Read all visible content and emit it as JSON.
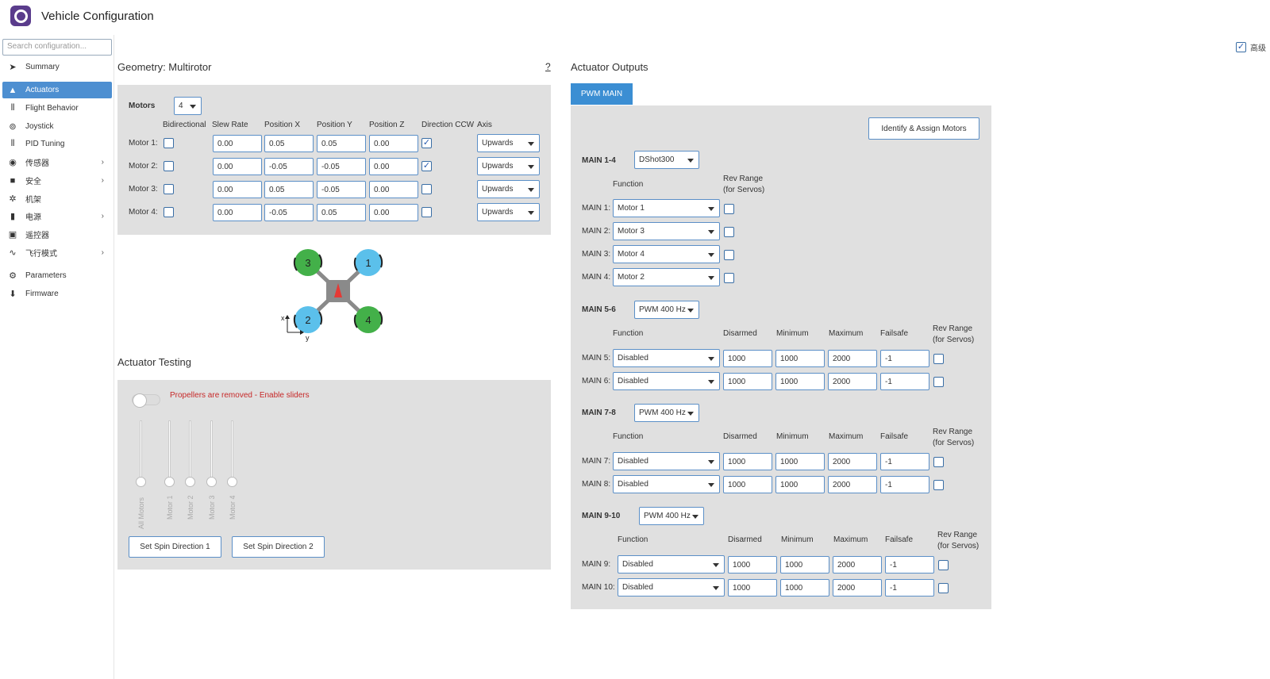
{
  "app": {
    "title": "Vehicle Configuration",
    "advanced_label": "高级",
    "advanced_checked": true
  },
  "sidebar": {
    "search_placeholder": "Search configuration...",
    "items": [
      {
        "label": "Summary",
        "icon": "paper-plane-icon"
      },
      {
        "label": "Actuators",
        "icon": "actuator-icon",
        "selected": true
      },
      {
        "label": "Flight Behavior",
        "icon": "sliders-icon"
      },
      {
        "label": "Joystick",
        "icon": "gamepad-icon"
      },
      {
        "label": "PID Tuning",
        "icon": "sliders-icon"
      },
      {
        "label": "传感器",
        "icon": "signal-icon",
        "chevron": true
      },
      {
        "label": "安全",
        "icon": "medkit-icon",
        "chevron": true
      },
      {
        "label": "机架",
        "icon": "frame-icon"
      },
      {
        "label": "电源",
        "icon": "battery-icon",
        "chevron": true
      },
      {
        "label": "遥控器",
        "icon": "remote-icon"
      },
      {
        "label": "飞行模式",
        "icon": "waveform-icon",
        "chevron": true
      },
      {
        "label": "Parameters",
        "icon": "gears-icon"
      },
      {
        "label": "Firmware",
        "icon": "download-icon"
      }
    ]
  },
  "geometry": {
    "title": "Geometry: Multirotor",
    "help": "?",
    "motors_label": "Motors",
    "motors_count": "4",
    "headers": {
      "bidir": "Bidirectional",
      "slew": "Slew Rate",
      "px": "Position X",
      "py": "Position Y",
      "pz": "Position Z",
      "dir": "Direction CCW",
      "axis": "Axis"
    },
    "rows": [
      {
        "label": "Motor 1:",
        "bidir": false,
        "slew": "0.00",
        "px": "0.05",
        "py": "0.05",
        "pz": "0.00",
        "ccw": true,
        "axis": "Upwards"
      },
      {
        "label": "Motor 2:",
        "bidir": false,
        "slew": "0.00",
        "px": "-0.05",
        "py": "-0.05",
        "pz": "0.00",
        "ccw": true,
        "axis": "Upwards"
      },
      {
        "label": "Motor 3:",
        "bidir": false,
        "slew": "0.00",
        "px": "0.05",
        "py": "-0.05",
        "pz": "0.00",
        "ccw": false,
        "axis": "Upwards"
      },
      {
        "label": "Motor 4:",
        "bidir": false,
        "slew": "0.00",
        "px": "-0.05",
        "py": "0.05",
        "pz": "0.00",
        "ccw": false,
        "axis": "Upwards"
      }
    ],
    "diagram": {
      "m1": "1",
      "m2": "2",
      "m3": "3",
      "m4": "4",
      "axis_x": "x",
      "axis_y": "y",
      "colors": {
        "green": "#43b049",
        "blue": "#5bc0eb",
        "body": "#8a8a8a",
        "arrow": "#e53935"
      }
    }
  },
  "testing": {
    "title": "Actuator Testing",
    "warning": "Propellers are removed - Enable sliders",
    "sliders": [
      "All Motors",
      "Motor 1",
      "Motor 2",
      "Motor 3",
      "Motor 4"
    ],
    "btn1": "Set Spin Direction 1",
    "btn2": "Set Spin Direction 2"
  },
  "outputs": {
    "title": "Actuator Outputs",
    "tab": "PWM MAIN",
    "identify_btn": "Identify & Assign Motors",
    "col": {
      "function": "Function",
      "rev1": "Rev Range",
      "rev2": "(for Servos)",
      "disarmed": "Disarmed",
      "minimum": "Minimum",
      "maximum": "Maximum",
      "failsafe": "Failsafe"
    },
    "group1": {
      "label": "MAIN 1-4",
      "protocol": "DShot300",
      "rows": [
        {
          "label": "MAIN 1:",
          "fn": "Motor 1"
        },
        {
          "label": "MAIN 2:",
          "fn": "Motor 3"
        },
        {
          "label": "MAIN 3:",
          "fn": "Motor 4"
        },
        {
          "label": "MAIN 4:",
          "fn": "Motor 2"
        }
      ]
    },
    "group2": {
      "label": "MAIN 5-6",
      "protocol": "PWM 400 Hz",
      "rows": [
        {
          "label": "MAIN 5:",
          "fn": "Disabled",
          "dis": "1000",
          "min": "1000",
          "max": "2000",
          "fs": "-1"
        },
        {
          "label": "MAIN 6:",
          "fn": "Disabled",
          "dis": "1000",
          "min": "1000",
          "max": "2000",
          "fs": "-1"
        }
      ]
    },
    "group3": {
      "label": "MAIN 7-8",
      "protocol": "PWM 400 Hz",
      "rows": [
        {
          "label": "MAIN 7:",
          "fn": "Disabled",
          "dis": "1000",
          "min": "1000",
          "max": "2000",
          "fs": "-1"
        },
        {
          "label": "MAIN 8:",
          "fn": "Disabled",
          "dis": "1000",
          "min": "1000",
          "max": "2000",
          "fs": "-1"
        }
      ]
    },
    "group4": {
      "label": "MAIN 9-10",
      "protocol": "PWM 400 Hz",
      "rows": [
        {
          "label": "MAIN 9:",
          "fn": "Disabled",
          "dis": "1000",
          "min": "1000",
          "max": "2000",
          "fs": "-1"
        },
        {
          "label": "MAIN 10:",
          "fn": "Disabled",
          "dis": "1000",
          "min": "1000",
          "max": "2000",
          "fs": "-1"
        }
      ]
    }
  }
}
